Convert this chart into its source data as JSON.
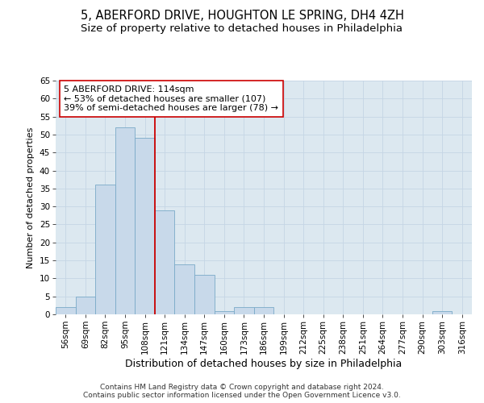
{
  "title": "5, ABERFORD DRIVE, HOUGHTON LE SPRING, DH4 4ZH",
  "subtitle": "Size of property relative to detached houses in Philadelphia",
  "xlabel": "Distribution of detached houses by size in Philadelphia",
  "ylabel": "Number of detached properties",
  "categories": [
    "56sqm",
    "69sqm",
    "82sqm",
    "95sqm",
    "108sqm",
    "121sqm",
    "134sqm",
    "147sqm",
    "160sqm",
    "173sqm",
    "186sqm",
    "199sqm",
    "212sqm",
    "225sqm",
    "238sqm",
    "251sqm",
    "264sqm",
    "277sqm",
    "290sqm",
    "303sqm",
    "316sqm"
  ],
  "bar_heights": [
    2,
    5,
    36,
    52,
    49,
    29,
    14,
    11,
    1,
    2,
    2,
    0,
    0,
    0,
    0,
    0,
    0,
    0,
    0,
    1,
    0
  ],
  "bar_color": "#c8d9ea",
  "bar_edge_color": "#7aaac8",
  "vline_x": 4.5,
  "vline_color": "#cc0000",
  "annotation_text": "5 ABERFORD DRIVE: 114sqm\n← 53% of detached houses are smaller (107)\n39% of semi-detached houses are larger (78) →",
  "annotation_box_color": "#ffffff",
  "annotation_box_edge": "#cc0000",
  "ylim": [
    0,
    65
  ],
  "yticks": [
    0,
    5,
    10,
    15,
    20,
    25,
    30,
    35,
    40,
    45,
    50,
    55,
    60,
    65
  ],
  "grid_color": "#c5d5e5",
  "bg_color": "#dce8f0",
  "footer": "Contains HM Land Registry data © Crown copyright and database right 2024.\nContains public sector information licensed under the Open Government Licence v3.0.",
  "title_fontsize": 10.5,
  "subtitle_fontsize": 9.5,
  "xlabel_fontsize": 9,
  "ylabel_fontsize": 8,
  "tick_fontsize": 7.5,
  "annotation_fontsize": 8,
  "footer_fontsize": 6.5
}
